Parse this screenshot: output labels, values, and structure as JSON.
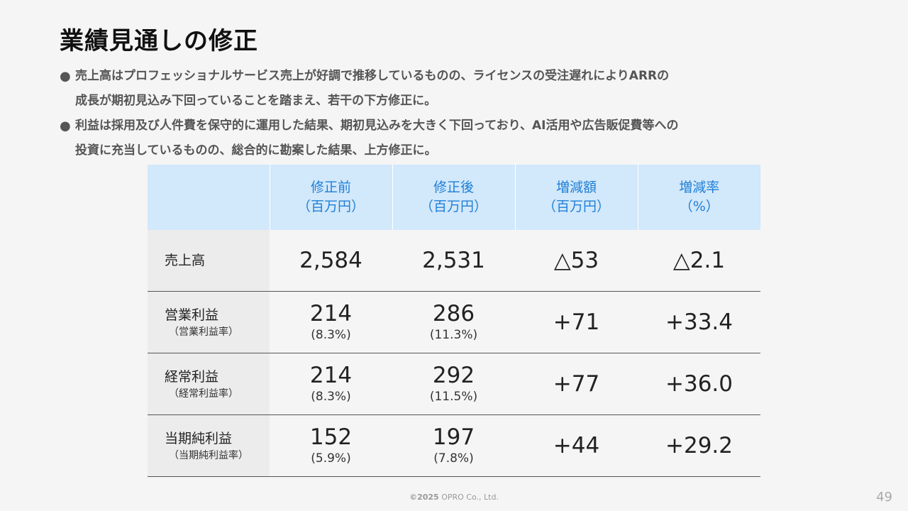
{
  "slide": {
    "title": "業績見通しの修正",
    "bullet_marker": "●",
    "bullets": [
      {
        "line1": "売上高はプロフェッショナルサービス売上が好調で推移しているものの、ライセンスの受注遅れによりARRの",
        "line2": "成長が期初見込み下回っていることを踏まえ、若干の下方修正に。"
      },
      {
        "line1": "利益は採用及び人件費を保守的に運用した結果、期初見込みを大きく下回っており、AI活用や広告販促費等への",
        "line2": "投資に充当しているものの、総合的に勘案した結果、上方修正に。"
      }
    ]
  },
  "table": {
    "headers": [
      {
        "line1": "修正前",
        "line2": "（百万円）"
      },
      {
        "line1": "修正後",
        "line2": "（百万円）"
      },
      {
        "line1": "増減額",
        "line2": "（百万円）"
      },
      {
        "line1": "増減率",
        "line2": "（%）"
      }
    ],
    "rows": [
      {
        "label": "売上高",
        "sublabel": "",
        "before": "2,584",
        "before_rate": "",
        "after": "2,531",
        "after_rate": "",
        "change": "△53",
        "change_pct": "△2.1"
      },
      {
        "label": "営業利益",
        "sublabel": "（営業利益率）",
        "before": "214",
        "before_rate": "(8.3%)",
        "after": "286",
        "after_rate": "(11.3%)",
        "change": "+71",
        "change_pct": "+33.4"
      },
      {
        "label": "経常利益",
        "sublabel": "（経常利益率）",
        "before": "214",
        "before_rate": "(8.3%)",
        "after": "292",
        "after_rate": "(11.5%)",
        "change": "+77",
        "change_pct": "+36.0"
      },
      {
        "label": "当期純利益",
        "sublabel": "（当期純利益率）",
        "before": "152",
        "before_rate": "(5.9%)",
        "after": "197",
        "after_rate": "(7.8%)",
        "change": "+44",
        "change_pct": "+29.2"
      }
    ]
  },
  "footer": {
    "copyright_year": "©2025",
    "copyright_text": "OPRO Co., Ltd.",
    "page_number": "49"
  },
  "colors": {
    "header_bg": "#d2e8fb",
    "header_text": "#1f7fd6",
    "rowhead_bg": "#ececec"
  }
}
